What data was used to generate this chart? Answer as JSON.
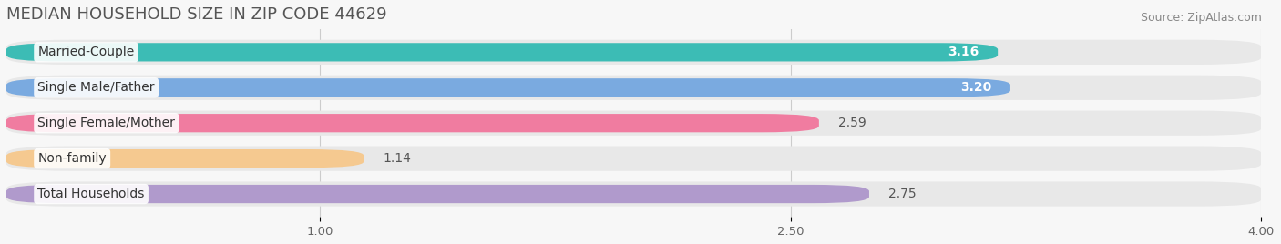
{
  "title": "MEDIAN HOUSEHOLD SIZE IN ZIP CODE 44629",
  "source": "Source: ZipAtlas.com",
  "categories": [
    "Married-Couple",
    "Single Male/Father",
    "Single Female/Mother",
    "Non-family",
    "Total Households"
  ],
  "values": [
    3.16,
    3.2,
    2.59,
    1.14,
    2.75
  ],
  "bar_colors": [
    "#3cbcb5",
    "#7aaae0",
    "#f07ca0",
    "#f5c990",
    "#b09acc"
  ],
  "track_color": "#e8e8e8",
  "value_label_inside": [
    true,
    true,
    false,
    false,
    false
  ],
  "xlim_min": 0,
  "xlim_max": 4.0,
  "xticks": [
    1.0,
    2.5,
    4.0
  ],
  "background_color": "#f7f7f7",
  "title_fontsize": 13,
  "source_fontsize": 9,
  "bar_label_fontsize": 10,
  "value_fontsize": 10
}
